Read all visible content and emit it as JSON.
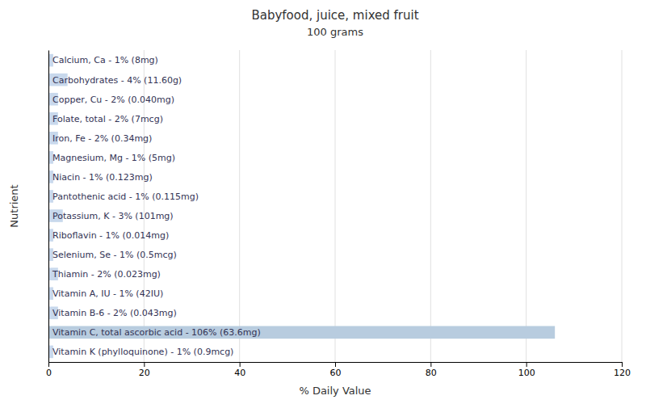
{
  "chart_data": {
    "type": "bar",
    "orientation": "horizontal",
    "title": "Babyfood, juice, mixed fruit",
    "subtitle": "100 grams",
    "xlabel": "% Daily Value",
    "ylabel": "Nutrient",
    "categories": [
      "Calcium, Ca - 1% (8mg)",
      "Carbohydrates - 4% (11.60g)",
      "Copper, Cu - 2% (0.040mg)",
      "Folate, total - 2% (7mcg)",
      "Iron, Fe - 2% (0.34mg)",
      "Magnesium, Mg - 1% (5mg)",
      "Niacin - 1% (0.123mg)",
      "Pantothenic acid - 1% (0.115mg)",
      "Potassium, K - 3% (101mg)",
      "Riboflavin - 1% (0.014mg)",
      "Selenium, Se - 1% (0.5mcg)",
      "Thiamin - 2% (0.023mg)",
      "Vitamin A, IU - 1% (42IU)",
      "Vitamin B-6 - 2% (0.043mg)",
      "Vitamin C, total ascorbic acid - 106% (63.6mg)",
      "Vitamin K (phylloquinone) - 1% (0.9mcg)"
    ],
    "values": [
      1,
      4,
      2,
      2,
      2,
      1,
      1,
      1,
      3,
      1,
      1,
      2,
      1,
      2,
      106,
      1
    ],
    "colors": [
      "#c8d8ec",
      "#c8d8ec",
      "#c8d8ec",
      "#c8d8ec",
      "#c8d8ec",
      "#c8d8ec",
      "#c8d8ec",
      "#c8d8ec",
      "#c8d8ec",
      "#c8d8ec",
      "#c8d8ec",
      "#c8d8ec",
      "#c8d8ec",
      "#c8d8ec",
      "#b8ccdf",
      "#c8d8ec"
    ],
    "xlim": [
      0,
      120
    ],
    "xticks": [
      0,
      20,
      40,
      60,
      80,
      100,
      120
    ],
    "grid": true,
    "tick_labels": "x"
  }
}
